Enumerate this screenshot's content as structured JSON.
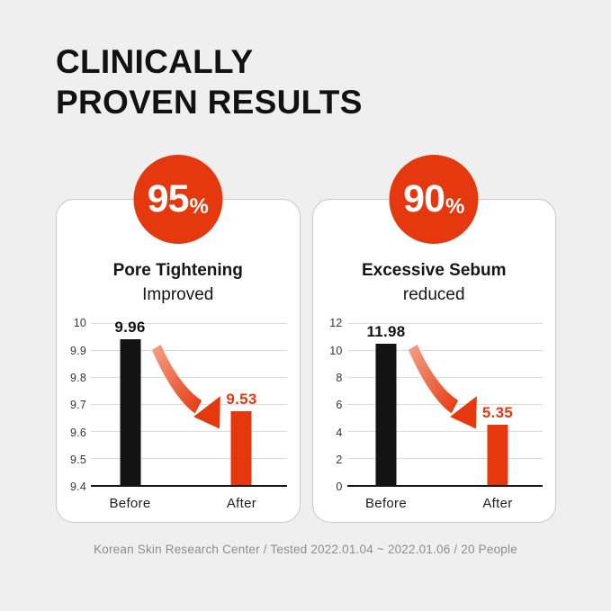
{
  "page": {
    "title_lines": [
      "CLINICALLY",
      "PROVEN RESULTS"
    ],
    "footer": "Korean Skin Research Center / Tested 2022.01.04 ~ 2022.01.06 / 20 People"
  },
  "colors": {
    "accent": "#E5380F",
    "arrow_gradient_start": "#F5A088",
    "before_bar": "#131313",
    "background": "#F0EFEF",
    "card_border": "#C9C9C9",
    "grid": "#DCDCDC",
    "axis_text": "#363636",
    "footer_text": "#8D8D8D"
  },
  "cards": [
    {
      "badge": {
        "value": "95",
        "unit": "%"
      },
      "title_bold": "Pore Tightening",
      "title_regular": "Improved"
    },
    {
      "badge": {
        "value": "90",
        "unit": "%"
      },
      "title_bold": "Excessive Sebum",
      "title_regular": "reduced"
    }
  ],
  "chart_data": [
    {
      "type": "bar",
      "title": "Pore Tightening Improved",
      "categories": [
        "Before",
        "After"
      ],
      "values": [
        9.96,
        9.53
      ],
      "data_labels": [
        "9.96",
        "9.53"
      ],
      "bar_colors": [
        "#131313",
        "#E5380F"
      ],
      "ylim": [
        9.4,
        10
      ],
      "yticks": [
        "10",
        "9.9",
        "9.8",
        "9.7",
        "9.6",
        "9.5",
        "9.4"
      ],
      "grid": true,
      "legend": false,
      "xlabel": "",
      "ylabel": "",
      "layout": {
        "bar_centers_pct": [
          20,
          77
        ],
        "drawn_height_fractions": [
          0.9,
          0.455
        ]
      }
    },
    {
      "type": "bar",
      "title": "Excessive Sebum reduced",
      "categories": [
        "Before",
        "After"
      ],
      "values": [
        11.98,
        5.35
      ],
      "data_labels": [
        "11.98",
        "5.35"
      ],
      "bar_colors": [
        "#131313",
        "#E5380F"
      ],
      "ylim": [
        0,
        12
      ],
      "yticks": [
        "12",
        "10",
        "8",
        "6",
        "4",
        "2",
        "0"
      ],
      "grid": true,
      "legend": false,
      "xlabel": "",
      "ylabel": "",
      "layout": {
        "bar_centers_pct": [
          20,
          77
        ],
        "drawn_height_fractions": [
          0.875,
          0.375
        ]
      }
    }
  ]
}
